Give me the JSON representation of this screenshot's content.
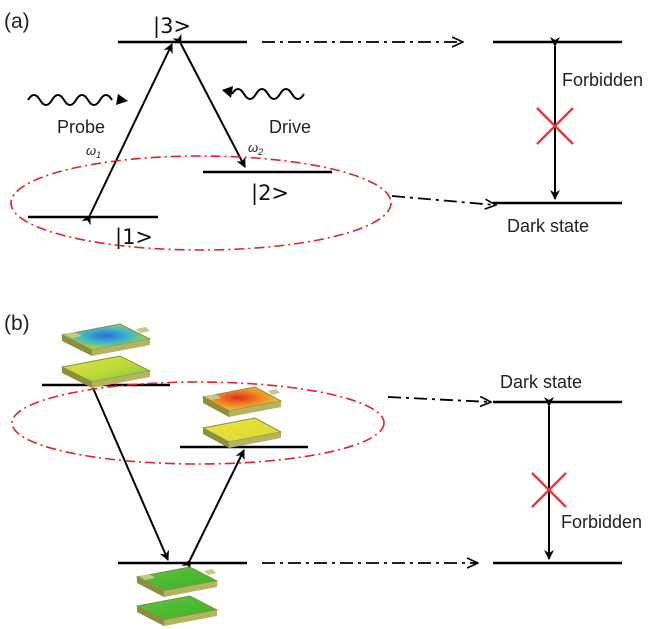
{
  "panel_a": {
    "tag": "(a)",
    "level3": "|3>",
    "level2": "|2>",
    "level1": "|1>",
    "probe": "Probe",
    "drive": "Drive",
    "omega1": "ω1",
    "omega2": "ω2",
    "forbidden": "Forbidden",
    "dark_state": "Dark state"
  },
  "panel_b": {
    "tag": "(b)",
    "dark_state": "Dark state",
    "forbidden": "Forbidden"
  },
  "colors": {
    "line": "#000000",
    "dash_ellipse": "#e0242a",
    "cross": "#e8383d",
    "resonator_frame": "#a9a86a"
  }
}
